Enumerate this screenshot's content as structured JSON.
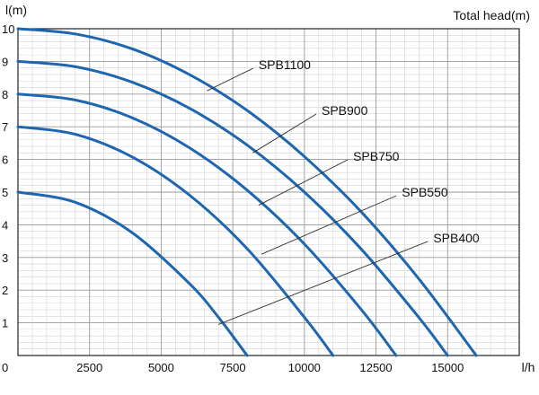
{
  "chart_data": {
    "type": "line",
    "title_right": "Total head(m)",
    "ylabel": "l(m)",
    "xlabel": "l/h",
    "xlim": [
      0,
      17500
    ],
    "ylim": [
      0,
      10
    ],
    "x_ticks": [
      0,
      2500,
      5000,
      7500,
      10000,
      12500,
      15000
    ],
    "y_ticks": [
      1,
      2,
      3,
      4,
      5,
      6,
      7,
      8,
      9,
      10
    ],
    "grid": true,
    "series": [
      {
        "name": "SPB1100",
        "x": [
          0,
          2000,
          4000,
          6000,
          8000,
          10000,
          12000,
          14000,
          16000
        ],
        "y": [
          10,
          9.84,
          9.38,
          8.59,
          7.5,
          6.09,
          4.38,
          2.34,
          0
        ]
      },
      {
        "name": "SPB900",
        "x": [
          0,
          2000,
          4000,
          6000,
          8000,
          10000,
          12000,
          14000,
          15000
        ],
        "y": [
          9,
          8.84,
          8.36,
          7.56,
          6.44,
          5.0,
          3.24,
          1.16,
          0
        ]
      },
      {
        "name": "SPB750",
        "x": [
          0,
          2000,
          4000,
          6000,
          8000,
          10000,
          12000,
          13200
        ],
        "y": [
          8,
          7.82,
          7.27,
          6.35,
          5.06,
          3.41,
          1.39,
          0
        ]
      },
      {
        "name": "SPB550",
        "x": [
          0,
          2000,
          4000,
          6000,
          8000,
          10000,
          11000
        ],
        "y": [
          7,
          6.77,
          6.07,
          4.9,
          3.27,
          1.17,
          0
        ]
      },
      {
        "name": "SPB400",
        "x": [
          0,
          2000,
          4000,
          6000,
          7000,
          8000
        ],
        "y": [
          5,
          4.69,
          3.75,
          2.19,
          1.17,
          0
        ]
      }
    ],
    "annotations": [
      {
        "label": "SPB1100",
        "anchor_x": 6600,
        "anchor_y": 8.1,
        "text_x": 8400,
        "text_y": 8.9
      },
      {
        "label": "SPB900",
        "anchor_x": 8200,
        "anchor_y": 6.2,
        "text_x": 10600,
        "text_y": 7.5
      },
      {
        "label": "SPB750",
        "anchor_x": 8400,
        "anchor_y": 4.6,
        "text_x": 11700,
        "text_y": 6.1
      },
      {
        "label": "SPB550",
        "anchor_x": 8500,
        "anchor_y": 3.1,
        "text_x": 13400,
        "text_y": 5.0
      },
      {
        "label": "SPB400",
        "anchor_x": 7000,
        "anchor_y": 0.95,
        "text_x": 14500,
        "text_y": 3.6
      }
    ],
    "line_color": "#1f66b1"
  }
}
